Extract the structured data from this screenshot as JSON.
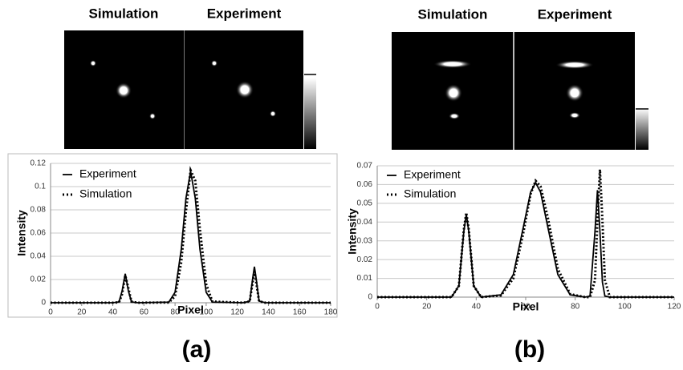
{
  "chart_data": [
    {
      "type": "line",
      "caption": "(a)",
      "image_titles": [
        "Simulation",
        "Experiment"
      ],
      "xlabel": "Pixel",
      "ylabel": "Intensity",
      "x": [
        0,
        40,
        44,
        46,
        48,
        50,
        52,
        56,
        76,
        80,
        84,
        87,
        90,
        93,
        96,
        100,
        104,
        124,
        128,
        130,
        131,
        132,
        134,
        138,
        180
      ],
      "series": [
        {
          "name": "Experiment",
          "color": "#000000",
          "style": "solid",
          "values": [
            0,
            0,
            0.0007,
            0.0102,
            0.025,
            0.0102,
            0.0007,
            0,
            0.0005,
            0.009,
            0.046,
            0.09,
            0.113,
            0.09,
            0.046,
            0.009,
            0.0005,
            0,
            0.0014,
            0.022,
            0.031,
            0.022,
            0.0014,
            0,
            0
          ]
        },
        {
          "name": "Simulation",
          "color": "#000000",
          "style": "dotted",
          "values": [
            0,
            0,
            0.0004,
            0.0075,
            0.0235,
            0.0125,
            0.001,
            0,
            0.0002,
            0.0056,
            0.035,
            0.079,
            0.114,
            0.105,
            0.063,
            0.016,
            0.001,
            0,
            0.0012,
            0.019,
            0.027,
            0.019,
            0.0012,
            0,
            0
          ]
        }
      ],
      "xlim": [
        0,
        180
      ],
      "xticks": [
        0,
        20,
        40,
        60,
        80,
        100,
        120,
        140,
        160,
        180
      ],
      "ylim": [
        0,
        0.12
      ],
      "yticks": [
        0,
        0.02,
        0.04,
        0.06,
        0.08,
        0.1,
        0.12
      ],
      "grid": true
    },
    {
      "type": "line",
      "caption": "(b)",
      "image_titles": [
        "Simulation",
        "Experiment"
      ],
      "xlabel": "Pixel",
      "ylabel": "Intensity",
      "x": [
        0,
        30,
        33,
        35,
        36,
        37,
        39,
        42,
        50,
        55,
        59,
        62,
        64,
        66,
        69,
        73,
        78,
        84,
        86,
        88,
        89,
        90,
        91,
        92,
        94,
        120
      ],
      "series": [
        {
          "name": "Experiment",
          "color": "#000000",
          "style": "solid",
          "values": [
            0,
            0,
            0.006,
            0.035,
            0.044,
            0.035,
            0.006,
            0,
            0.0012,
            0.012,
            0.037,
            0.056,
            0.061,
            0.056,
            0.037,
            0.012,
            0.0012,
            0,
            0.0006,
            0.035,
            0.057,
            0.035,
            0.008,
            0.0006,
            0,
            0
          ]
        },
        {
          "name": "Simulation",
          "color": "#000000",
          "style": "dotted",
          "values": [
            0,
            0,
            0.006,
            0.036,
            0.045,
            0.036,
            0.006,
            0,
            0.0009,
            0.01,
            0.034,
            0.055,
            0.062,
            0.059,
            0.042,
            0.015,
            0.0016,
            0,
            0,
            0.009,
            0.041,
            0.068,
            0.041,
            0.009,
            0,
            0
          ]
        }
      ],
      "xlim": [
        0,
        120
      ],
      "xticks": [
        0,
        20,
        40,
        60,
        80,
        100,
        120
      ],
      "ylim": [
        0,
        0.07
      ],
      "yticks": [
        0,
        0.01,
        0.02,
        0.03,
        0.04,
        0.05,
        0.06,
        0.07
      ],
      "grid": true
    }
  ]
}
